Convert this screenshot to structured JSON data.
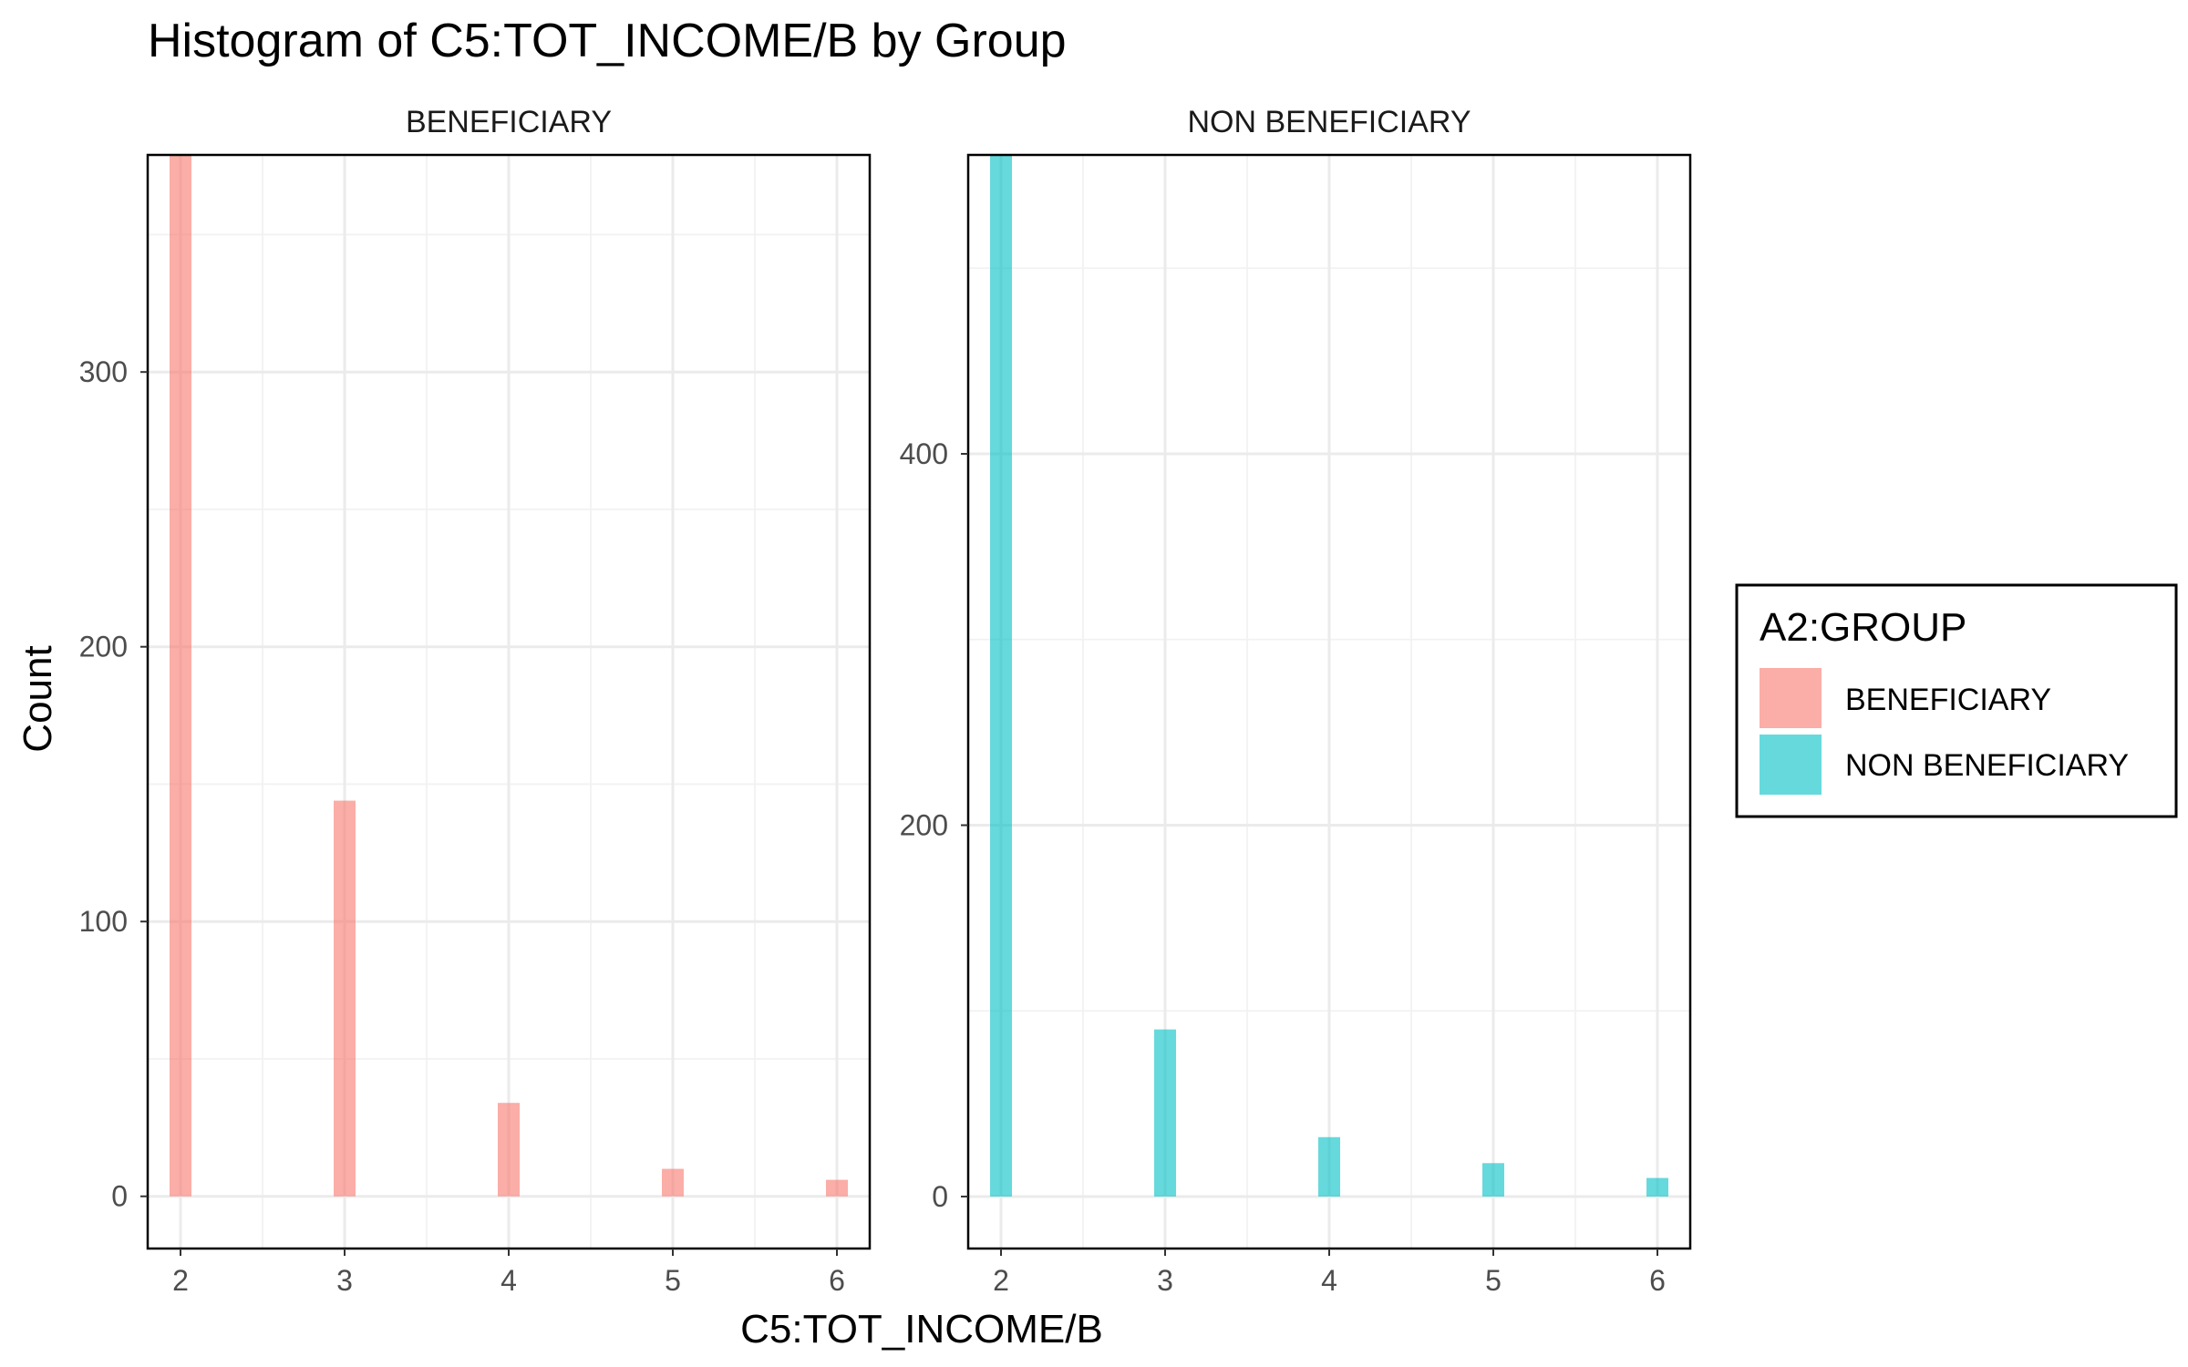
{
  "chart_data": {
    "type": "bar",
    "title": "Histogram of C5:TOT_INCOME/B by Group",
    "xlabel": "C5:TOT_INCOME/B",
    "ylabel": "Count",
    "grid": true,
    "legend": {
      "title": "A2:GROUP",
      "placement": "right",
      "entries": [
        {
          "label": "BENEFICIARY",
          "color": "#F8766D"
        },
        {
          "label": "NON BENEFICIARY",
          "color": "#00BFC4"
        }
      ]
    },
    "panels": [
      {
        "name": "BENEFICIARY",
        "color": "#F8766D",
        "x": [
          2,
          3,
          4,
          5,
          6
        ],
        "values": [
          379,
          144,
          34,
          10,
          6
        ],
        "xlim": [
          1.8,
          6.2
        ],
        "ylim": [
          -19,
          379
        ],
        "xticks": [
          2,
          3,
          4,
          5,
          6
        ],
        "yticks": [
          0,
          100,
          200,
          300
        ]
      },
      {
        "name": "NON BENEFICIARY",
        "color": "#00BFC4",
        "x": [
          2,
          3,
          4,
          5,
          6
        ],
        "values": [
          561,
          90,
          32,
          18,
          10
        ],
        "xlim": [
          1.8,
          6.2
        ],
        "ylim": [
          -28,
          561
        ],
        "xticks": [
          2,
          3,
          4,
          5,
          6
        ],
        "yticks": [
          0,
          200,
          400
        ]
      }
    ]
  }
}
